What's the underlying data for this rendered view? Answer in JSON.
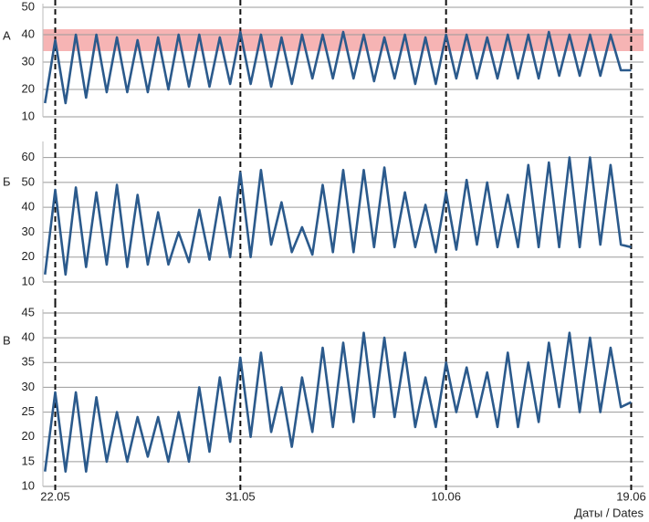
{
  "chart_data": [
    {
      "type": "line",
      "label": "А",
      "xlim": [
        -0.6,
        28.6
      ],
      "ylim": [
        10,
        50
      ],
      "yticks": [
        10,
        20,
        30,
        40,
        50
      ],
      "xticks": [
        {
          "value": 0,
          "label": "22.05"
        },
        {
          "value": 9,
          "label": "31.05"
        },
        {
          "value": 19,
          "label": "10.06"
        },
        {
          "value": 28,
          "label": "19.06"
        }
      ],
      "grid": true,
      "band": [
        34,
        42
      ],
      "band_color": "#f4a7a7",
      "series": [
        {
          "color": "#2b5a8c",
          "x": [
            -0.5,
            0,
            0.5,
            1,
            1.5,
            2,
            2.5,
            3,
            3.5,
            4,
            4.5,
            5,
            5.5,
            6,
            6.5,
            7,
            7.5,
            8,
            8.5,
            9,
            9.5,
            10,
            10.5,
            11,
            11.5,
            12,
            12.5,
            13,
            13.5,
            14,
            14.5,
            15,
            15.5,
            16,
            16.5,
            17,
            17.5,
            18,
            18.5,
            19,
            19.5,
            20,
            20.5,
            21,
            21.5,
            22,
            22.5,
            23,
            23.5,
            24,
            24.5,
            25,
            25.5,
            26,
            26.5,
            27,
            27.5,
            28
          ],
          "values": [
            15,
            38,
            15,
            40,
            17,
            40,
            19,
            39,
            19,
            38,
            19,
            39,
            20,
            40,
            21,
            40,
            21,
            39,
            22,
            41,
            22,
            40,
            21,
            39,
            22,
            40,
            24,
            40,
            24,
            41,
            24,
            40,
            23,
            39,
            24,
            40,
            22,
            39,
            22,
            40,
            24,
            40,
            24,
            39,
            24,
            40,
            24,
            40,
            24,
            41,
            25,
            40,
            25,
            40,
            25,
            40,
            27,
            27
          ]
        }
      ]
    },
    {
      "type": "line",
      "label": "Б",
      "xlim": [
        -0.6,
        28.6
      ],
      "ylim": [
        10,
        65
      ],
      "yticks": [
        10,
        20,
        30,
        40,
        50,
        60
      ],
      "xticks": [
        {
          "value": 0,
          "label": "22.05"
        },
        {
          "value": 9,
          "label": "31.05"
        },
        {
          "value": 19,
          "label": "10.06"
        },
        {
          "value": 28,
          "label": "19.06"
        }
      ],
      "grid": true,
      "series": [
        {
          "color": "#2b5a8c",
          "x": [
            -0.5,
            0,
            0.5,
            1,
            1.5,
            2,
            2.5,
            3,
            3.5,
            4,
            4.5,
            5,
            5.5,
            6,
            6.5,
            7,
            7.5,
            8,
            8.5,
            9,
            9.5,
            10,
            10.5,
            11,
            11.5,
            12,
            12.5,
            13,
            13.5,
            14,
            14.5,
            15,
            15.5,
            16,
            16.5,
            17,
            17.5,
            18,
            18.5,
            19,
            19.5,
            20,
            20.5,
            21,
            21.5,
            22,
            22.5,
            23,
            23.5,
            24,
            24.5,
            25,
            25.5,
            26,
            26.5,
            27,
            27.5,
            28
          ],
          "values": [
            13,
            47,
            13,
            48,
            16,
            46,
            17,
            49,
            16,
            45,
            17,
            38,
            17,
            30,
            18,
            39,
            19,
            44,
            20,
            54,
            20,
            55,
            25,
            42,
            22,
            32,
            21,
            49,
            22,
            55,
            22,
            55,
            24,
            56,
            24,
            46,
            24,
            41,
            22,
            46,
            23,
            51,
            25,
            50,
            24,
            45,
            24,
            57,
            24,
            58,
            24,
            60,
            24,
            60,
            25,
            57,
            25,
            24
          ]
        }
      ]
    },
    {
      "type": "line",
      "label": "В",
      "xlim": [
        -0.6,
        28.6
      ],
      "ylim": [
        10,
        45
      ],
      "yticks": [
        10,
        15,
        20,
        25,
        30,
        35,
        40,
        45
      ],
      "xticks": [
        {
          "value": 0,
          "label": "22.05"
        },
        {
          "value": 9,
          "label": "31.05"
        },
        {
          "value": 19,
          "label": "10.06"
        },
        {
          "value": 28,
          "label": "19.06"
        }
      ],
      "grid": true,
      "xlabel": "Даты / Dates",
      "series": [
        {
          "color": "#2b5a8c",
          "x": [
            -0.5,
            0,
            0.5,
            1,
            1.5,
            2,
            2.5,
            3,
            3.5,
            4,
            4.5,
            5,
            5.5,
            6,
            6.5,
            7,
            7.5,
            8,
            8.5,
            9,
            9.5,
            10,
            10.5,
            11,
            11.5,
            12,
            12.5,
            13,
            13.5,
            14,
            14.5,
            15,
            15.5,
            16,
            16.5,
            17,
            17.5,
            18,
            18.5,
            19,
            19.5,
            20,
            20.5,
            21,
            21.5,
            22,
            22.5,
            23,
            23.5,
            24,
            24.5,
            25,
            25.5,
            26,
            26.5,
            27,
            27.5,
            28
          ],
          "values": [
            13,
            29,
            13,
            29,
            13,
            28,
            15,
            25,
            15,
            24,
            16,
            24,
            15,
            25,
            15,
            30,
            17,
            32,
            19,
            36,
            20,
            37,
            21,
            30,
            18,
            32,
            21,
            38,
            22,
            39,
            23,
            41,
            24,
            40,
            24,
            37,
            22,
            32,
            22,
            35,
            25,
            34,
            24,
            33,
            22,
            37,
            22,
            35,
            23,
            39,
            26,
            41,
            25,
            40,
            25,
            38,
            26,
            27
          ]
        }
      ]
    }
  ]
}
